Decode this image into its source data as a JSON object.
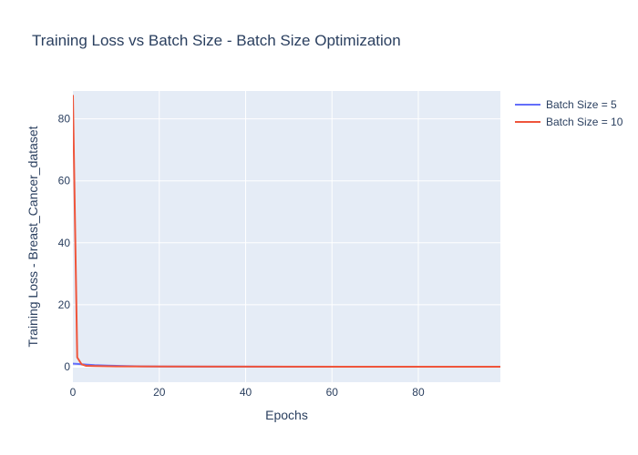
{
  "chart_data": {
    "type": "line",
    "title": "Training Loss vs Batch Size - Batch Size Optimization",
    "xlabel": "Epochs",
    "ylabel": "Training Loss - Breast_Cancer_dataset",
    "xlim": [
      0,
      99
    ],
    "ylim": [
      -5,
      89
    ],
    "x_ticks": [
      0,
      20,
      40,
      60,
      80
    ],
    "y_ticks": [
      0,
      20,
      40,
      60,
      80
    ],
    "grid": true,
    "legend_position": "top-right",
    "series": [
      {
        "name": "Batch Size = 5",
        "color": "#636efa",
        "points": [
          [
            0,
            1.0
          ],
          [
            1,
            0.9
          ],
          [
            2,
            0.8
          ],
          [
            3,
            0.7
          ],
          [
            5,
            0.5
          ],
          [
            8,
            0.35
          ],
          [
            12,
            0.2
          ],
          [
            16,
            0.1
          ],
          [
            20,
            0.05
          ],
          [
            30,
            0.02
          ],
          [
            50,
            0.01
          ],
          [
            99,
            0.0
          ]
        ]
      },
      {
        "name": "Batch Size = 10",
        "color": "#ef553b",
        "points": [
          [
            0,
            87.5
          ],
          [
            1,
            3.0
          ],
          [
            2,
            0.8
          ],
          [
            3,
            0.3
          ],
          [
            5,
            0.2
          ],
          [
            10,
            0.1
          ],
          [
            20,
            0.05
          ],
          [
            40,
            0.02
          ],
          [
            99,
            0.0
          ]
        ]
      }
    ]
  }
}
